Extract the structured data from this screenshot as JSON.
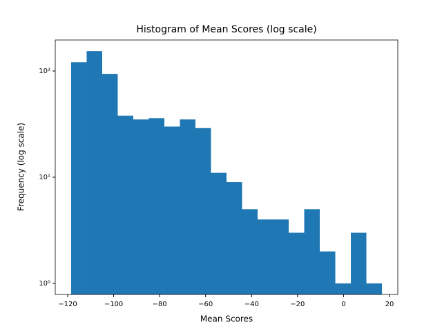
{
  "chart_data": {
    "type": "histogram",
    "title": "Histogram of Mean Scores (log scale)",
    "x_label": "Mean Scores",
    "y_label": "Frequency (log scale)",
    "bins": [
      -118.5,
      -111.74,
      -104.98,
      -98.22,
      -91.46,
      -84.7,
      -77.94,
      -71.18,
      -64.42,
      -57.66,
      -50.9,
      -44.14,
      -37.38,
      -30.62,
      -23.86,
      -17.1,
      -10.34,
      -3.58,
      3.18,
      9.94,
      16.7
    ],
    "values": [
      121,
      154,
      94,
      38,
      35,
      36,
      30,
      35,
      29,
      11,
      9,
      5,
      4,
      4,
      3,
      5,
      2,
      1,
      3,
      1
    ],
    "color": "#1f77b4",
    "xlim": [
      -125.4,
      23.6
    ],
    "xticks": [
      {
        "value": -120,
        "label": "−120"
      },
      {
        "value": -100,
        "label": "−100"
      },
      {
        "value": -80,
        "label": "−80"
      },
      {
        "value": -60,
        "label": "−60"
      },
      {
        "value": -40,
        "label": "−40"
      },
      {
        "value": -20,
        "label": "−20"
      },
      0,
      20
    ],
    "ylim": [
      0.787,
      196
    ],
    "y_log": true,
    "yticks": [
      {
        "value": 1,
        "label": "10⁰"
      },
      {
        "value": 10,
        "label": "10¹"
      },
      {
        "value": 100,
        "label": "10²"
      }
    ]
  }
}
